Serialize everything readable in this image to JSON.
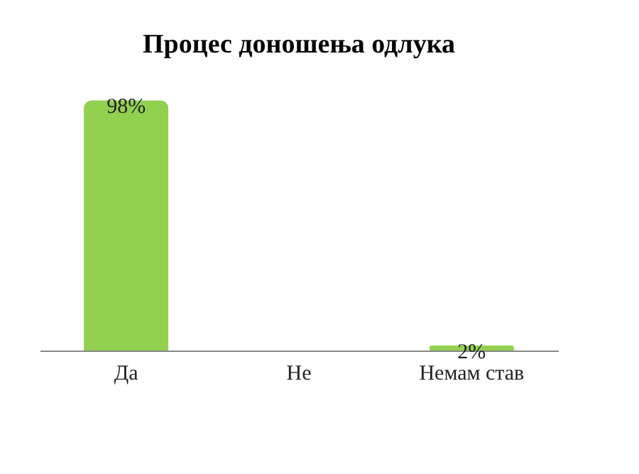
{
  "chart_data": {
    "type": "bar",
    "title": "Процес доношења одлука",
    "categories": [
      "Да",
      "Не",
      "Немам став"
    ],
    "series": [
      {
        "color": "#92d050",
        "values": [
          98,
          0,
          2
        ],
        "value_labels": [
          "98%",
          null,
          "2%"
        ]
      }
    ]
  }
}
